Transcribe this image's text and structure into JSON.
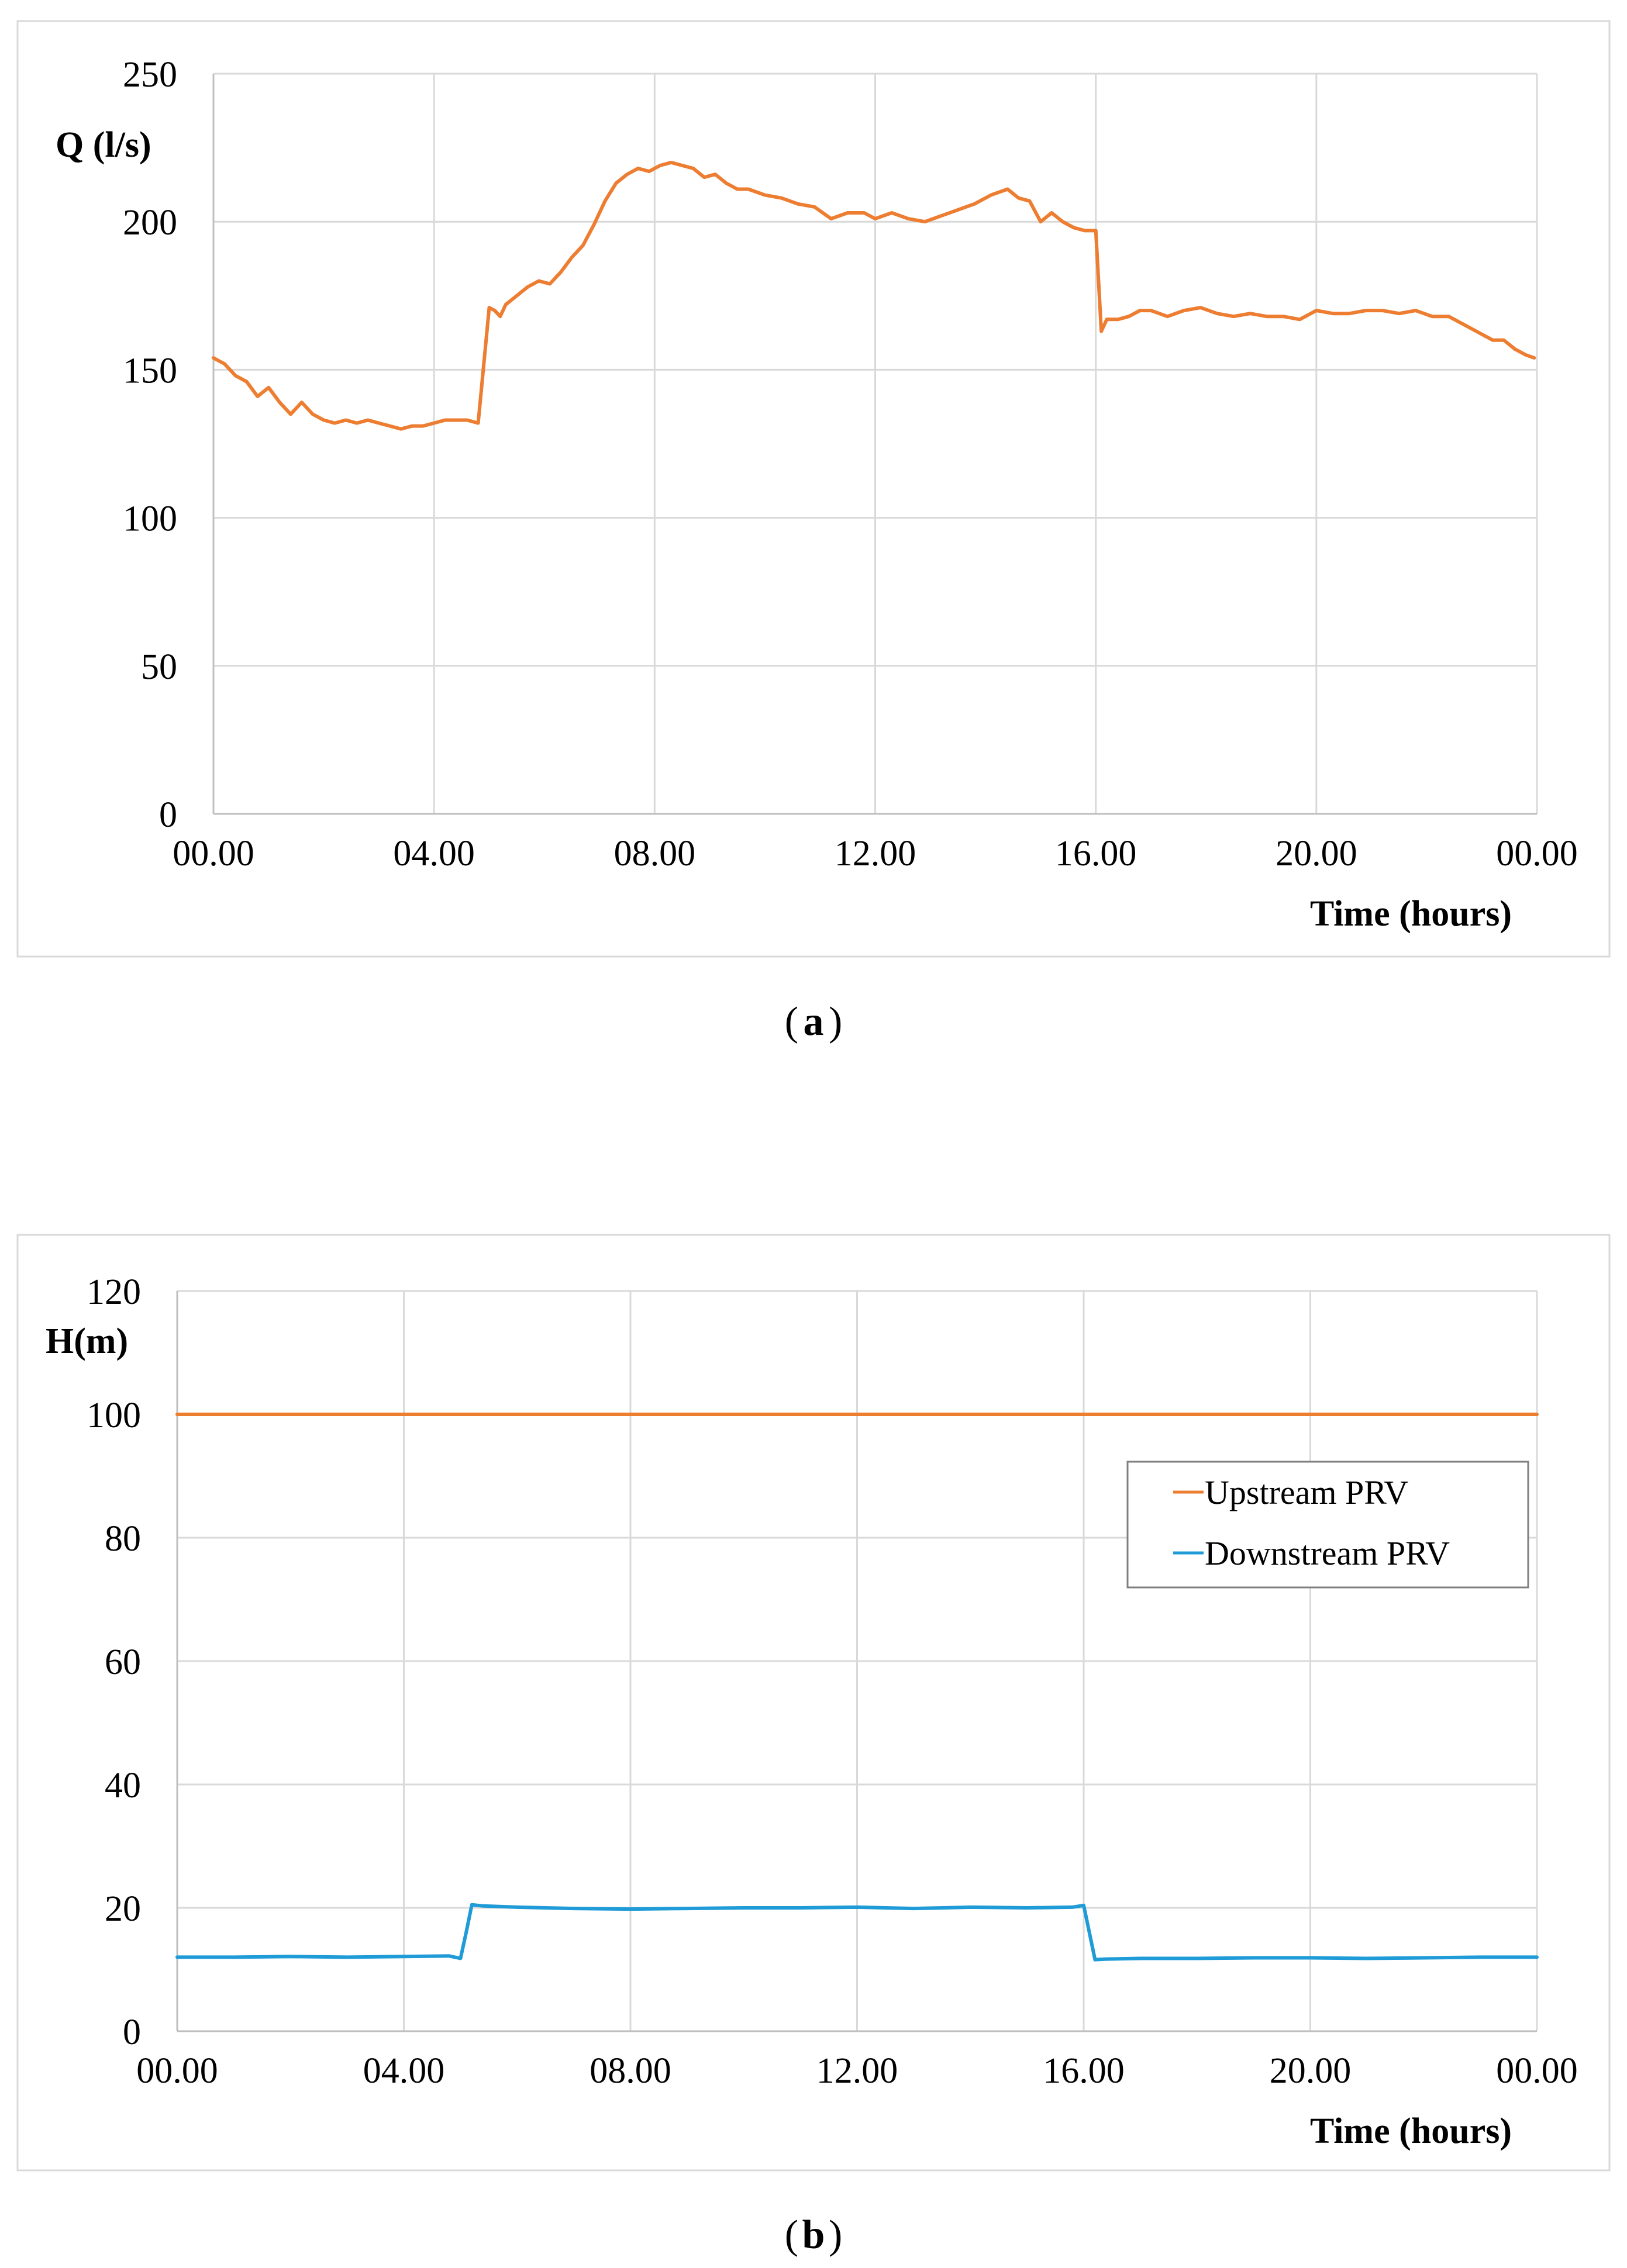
{
  "chart_data": [
    {
      "type": "line",
      "caption_label": "a",
      "ylabel": "Q (l/s)",
      "xlabel": "Time (hours)",
      "ylim": [
        0,
        250
      ],
      "y_ticks": [
        "0",
        "50",
        "100",
        "150",
        "200",
        "250"
      ],
      "x_ticks": [
        "00.00",
        "04.00",
        "08.00",
        "12.00",
        "16.00",
        "20.00",
        "00.00"
      ],
      "xlim": [
        0,
        24
      ],
      "grid": true,
      "series": [
        {
          "color": "#ED7D31",
          "x": [
            0,
            0.1,
            0.2,
            0.3,
            0.4,
            0.6,
            0.8,
            1.0,
            1.2,
            1.4,
            1.6,
            1.8,
            2.0,
            2.2,
            2.4,
            2.6,
            2.8,
            3.0,
            3.2,
            3.4,
            3.6,
            3.8,
            4.0,
            4.2,
            4.4,
            4.6,
            4.8,
            5.0,
            5.1,
            5.2,
            5.3,
            5.5,
            5.7,
            5.9,
            6.1,
            6.3,
            6.5,
            6.7,
            6.9,
            7.1,
            7.3,
            7.5,
            7.7,
            7.9,
            8.1,
            8.3,
            8.5,
            8.7,
            8.9,
            9.1,
            9.3,
            9.5,
            9.7,
            10.0,
            10.3,
            10.6,
            10.9,
            11.2,
            11.5,
            11.8,
            12.0,
            12.3,
            12.6,
            12.9,
            13.2,
            13.5,
            13.8,
            14.1,
            14.4,
            14.6,
            14.8,
            15.0,
            15.2,
            15.4,
            15.6,
            15.8,
            16.0,
            16.1,
            16.2,
            16.4,
            16.6,
            16.8,
            17.0,
            17.3,
            17.6,
            17.9,
            18.2,
            18.5,
            18.8,
            19.1,
            19.4,
            19.7,
            20.0,
            20.3,
            20.6,
            20.9,
            21.2,
            21.5,
            21.8,
            22.1,
            22.4,
            22.7,
            23.0,
            23.2,
            23.4,
            23.6,
            23.8,
            23.95
          ],
          "values": [
            154,
            153,
            152,
            150,
            148,
            146,
            141,
            144,
            139,
            135,
            139,
            135,
            133,
            132,
            133,
            132,
            133,
            132,
            131,
            130,
            131,
            131,
            132,
            133,
            133,
            133,
            132,
            171,
            170,
            168,
            172,
            175,
            178,
            180,
            179,
            183,
            188,
            192,
            199,
            207,
            213,
            216,
            218,
            217,
            219,
            220,
            219,
            218,
            215,
            216,
            213,
            211,
            211,
            209,
            208,
            206,
            205,
            201,
            203,
            203,
            201,
            203,
            201,
            200,
            202,
            204,
            206,
            209,
            211,
            208,
            207,
            200,
            203,
            200,
            198,
            197,
            197,
            163,
            167,
            167,
            168,
            170,
            170,
            168,
            170,
            171,
            169,
            168,
            169,
            168,
            168,
            167,
            170,
            169,
            169,
            170,
            170,
            169,
            170,
            168,
            168,
            165,
            162,
            160,
            160,
            157,
            155,
            154
          ]
        }
      ]
    },
    {
      "type": "line",
      "caption_label": "b",
      "ylabel": "H(m)",
      "xlabel": "Time (hours)",
      "ylim": [
        0,
        120
      ],
      "y_ticks": [
        "0",
        "20",
        "40",
        "60",
        "80",
        "100",
        "120"
      ],
      "x_ticks": [
        "00.00",
        "04.00",
        "08.00",
        "12.00",
        "16.00",
        "20.00",
        "00.00"
      ],
      "xlim": [
        0,
        24
      ],
      "grid": true,
      "legend_position": "right",
      "series": [
        {
          "name": "Upstream PRV",
          "color": "#ED7D31",
          "x": [
            0,
            24
          ],
          "values": [
            100,
            100
          ]
        },
        {
          "name": "Downstream PRV",
          "color": "#1F9BD7",
          "x": [
            0,
            1,
            2,
            3,
            4,
            4.8,
            5.0,
            5.1,
            5.2,
            5.4,
            6,
            7,
            8,
            9,
            10,
            11,
            12,
            13,
            14,
            15,
            15.8,
            16.0,
            16.1,
            16.2,
            16.4,
            17,
            18,
            19,
            20,
            21,
            22,
            23,
            24
          ],
          "values": [
            12,
            12,
            12.1,
            12,
            12.1,
            12.2,
            11.8,
            16,
            20.5,
            20.3,
            20.1,
            19.9,
            19.8,
            19.9,
            20,
            20,
            20.1,
            19.9,
            20.1,
            20,
            20.1,
            20.4,
            16,
            11.6,
            11.7,
            11.8,
            11.8,
            11.9,
            11.9,
            11.8,
            11.9,
            12,
            12
          ]
        }
      ]
    }
  ]
}
